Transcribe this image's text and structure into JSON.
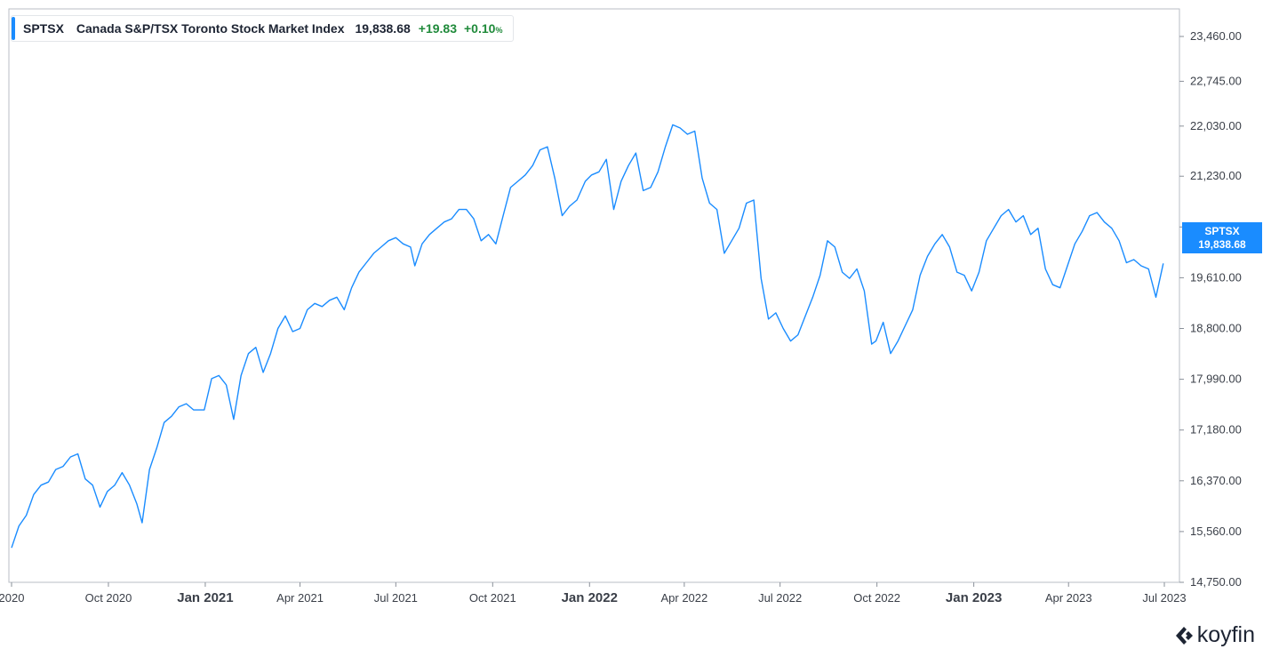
{
  "legend": {
    "symbol": "SPTSX",
    "name": "Canada S&P/TSX Toronto Stock Market Index",
    "price": "19,838.68",
    "change": "+19.83",
    "change_pct": "+0.10",
    "pct_sign": "%"
  },
  "price_tag": {
    "symbol": "SPTSX",
    "value": "19,838.68"
  },
  "brand": {
    "name": "koyfin"
  },
  "colors": {
    "line": "#1a8cff",
    "positive": "#1f8a3a",
    "tag_bg": "#1a8cff"
  },
  "chart_data": {
    "type": "line",
    "title": "Canada S&P/TSX Toronto Stock Market Index",
    "ylim": [
      14750,
      23900
    ],
    "y_ticks": [
      14750,
      15560,
      16370,
      17180,
      17990,
      18800,
      19610,
      20420,
      21230,
      22030,
      22745,
      23460
    ],
    "y_tick_labels": [
      "14,750.00",
      "15,560.00",
      "16,370.00",
      "17,180.00",
      "17,990.00",
      "18,800.00",
      "19,610.00",
      "20,420.00",
      "21,230.00",
      "22,030.00",
      "22,745.00",
      "23,460.00"
    ],
    "x_range": [
      "2020-07-01",
      "2023-07-01"
    ],
    "x_ticks": [
      {
        "date": "2020-07-01",
        "label": "2020",
        "bold": false
      },
      {
        "date": "2020-10-01",
        "label": "Oct 2020",
        "bold": false
      },
      {
        "date": "2021-01-01",
        "label": "Jan 2021",
        "bold": true
      },
      {
        "date": "2021-04-01",
        "label": "Apr 2021",
        "bold": false
      },
      {
        "date": "2021-07-01",
        "label": "Jul 2021",
        "bold": false
      },
      {
        "date": "2021-10-01",
        "label": "Oct 2021",
        "bold": false
      },
      {
        "date": "2022-01-01",
        "label": "Jan 2022",
        "bold": true
      },
      {
        "date": "2022-04-01",
        "label": "Apr 2022",
        "bold": false
      },
      {
        "date": "2022-07-01",
        "label": "Jul 2022",
        "bold": false
      },
      {
        "date": "2022-10-01",
        "label": "Oct 2022",
        "bold": false
      },
      {
        "date": "2023-01-01",
        "label": "Jan 2023",
        "bold": true
      },
      {
        "date": "2023-04-01",
        "label": "Apr 2023",
        "bold": false
      },
      {
        "date": "2023-07-01",
        "label": "Jul 2023",
        "bold": false
      }
    ],
    "series": [
      {
        "name": "SPTSX",
        "points": [
          [
            "2020-07-01",
            15300
          ],
          [
            "2020-07-08",
            15650
          ],
          [
            "2020-07-15",
            15820
          ],
          [
            "2020-07-22",
            16150
          ],
          [
            "2020-07-29",
            16300
          ],
          [
            "2020-08-05",
            16350
          ],
          [
            "2020-08-12",
            16550
          ],
          [
            "2020-08-19",
            16600
          ],
          [
            "2020-08-26",
            16750
          ],
          [
            "2020-09-02",
            16800
          ],
          [
            "2020-09-09",
            16400
          ],
          [
            "2020-09-16",
            16300
          ],
          [
            "2020-09-23",
            15950
          ],
          [
            "2020-09-30",
            16200
          ],
          [
            "2020-10-07",
            16300
          ],
          [
            "2020-10-14",
            16500
          ],
          [
            "2020-10-21",
            16300
          ],
          [
            "2020-10-28",
            16000
          ],
          [
            "2020-11-02",
            15700
          ],
          [
            "2020-11-09",
            16550
          ],
          [
            "2020-11-16",
            16900
          ],
          [
            "2020-11-23",
            17300
          ],
          [
            "2020-11-30",
            17400
          ],
          [
            "2020-12-07",
            17550
          ],
          [
            "2020-12-14",
            17600
          ],
          [
            "2020-12-21",
            17500
          ],
          [
            "2020-12-31",
            17500
          ],
          [
            "2021-01-07",
            18000
          ],
          [
            "2021-01-14",
            18050
          ],
          [
            "2021-01-21",
            17900
          ],
          [
            "2021-01-28",
            17350
          ],
          [
            "2021-02-04",
            18050
          ],
          [
            "2021-02-11",
            18400
          ],
          [
            "2021-02-18",
            18500
          ],
          [
            "2021-02-25",
            18100
          ],
          [
            "2021-03-04",
            18400
          ],
          [
            "2021-03-11",
            18800
          ],
          [
            "2021-03-18",
            19000
          ],
          [
            "2021-03-25",
            18750
          ],
          [
            "2021-04-01",
            18800
          ],
          [
            "2021-04-08",
            19100
          ],
          [
            "2021-04-15",
            19200
          ],
          [
            "2021-04-22",
            19150
          ],
          [
            "2021-04-29",
            19250
          ],
          [
            "2021-05-06",
            19300
          ],
          [
            "2021-05-13",
            19100
          ],
          [
            "2021-05-20",
            19450
          ],
          [
            "2021-05-27",
            19700
          ],
          [
            "2021-06-03",
            19850
          ],
          [
            "2021-06-10",
            20000
          ],
          [
            "2021-06-17",
            20100
          ],
          [
            "2021-06-24",
            20200
          ],
          [
            "2021-07-01",
            20250
          ],
          [
            "2021-07-08",
            20150
          ],
          [
            "2021-07-15",
            20100
          ],
          [
            "2021-07-19",
            19800
          ],
          [
            "2021-07-26",
            20150
          ],
          [
            "2021-08-02",
            20300
          ],
          [
            "2021-08-09",
            20400
          ],
          [
            "2021-08-16",
            20500
          ],
          [
            "2021-08-23",
            20550
          ],
          [
            "2021-08-30",
            20700
          ],
          [
            "2021-09-06",
            20700
          ],
          [
            "2021-09-13",
            20550
          ],
          [
            "2021-09-20",
            20200
          ],
          [
            "2021-09-27",
            20300
          ],
          [
            "2021-10-04",
            20150
          ],
          [
            "2021-10-11",
            20600
          ],
          [
            "2021-10-18",
            21050
          ],
          [
            "2021-10-25",
            21150
          ],
          [
            "2021-11-01",
            21250
          ],
          [
            "2021-11-08",
            21400
          ],
          [
            "2021-11-15",
            21650
          ],
          [
            "2021-11-22",
            21700
          ],
          [
            "2021-11-29",
            21200
          ],
          [
            "2021-12-06",
            20600
          ],
          [
            "2021-12-13",
            20750
          ],
          [
            "2021-12-20",
            20850
          ],
          [
            "2021-12-28",
            21150
          ],
          [
            "2022-01-03",
            21250
          ],
          [
            "2022-01-10",
            21300
          ],
          [
            "2022-01-17",
            21500
          ],
          [
            "2022-01-24",
            20700
          ],
          [
            "2022-01-31",
            21150
          ],
          [
            "2022-02-07",
            21400
          ],
          [
            "2022-02-14",
            21600
          ],
          [
            "2022-02-21",
            21000
          ],
          [
            "2022-02-28",
            21050
          ],
          [
            "2022-03-07",
            21300
          ],
          [
            "2022-03-14",
            21700
          ],
          [
            "2022-03-21",
            22050
          ],
          [
            "2022-03-28",
            22000
          ],
          [
            "2022-04-04",
            21900
          ],
          [
            "2022-04-11",
            21950
          ],
          [
            "2022-04-18",
            21200
          ],
          [
            "2022-04-25",
            20800
          ],
          [
            "2022-05-02",
            20700
          ],
          [
            "2022-05-09",
            20000
          ],
          [
            "2022-05-16",
            20200
          ],
          [
            "2022-05-23",
            20400
          ],
          [
            "2022-05-30",
            20800
          ],
          [
            "2022-06-06",
            20850
          ],
          [
            "2022-06-13",
            19600
          ],
          [
            "2022-06-20",
            18950
          ],
          [
            "2022-06-27",
            19050
          ],
          [
            "2022-07-04",
            18800
          ],
          [
            "2022-07-11",
            18600
          ],
          [
            "2022-07-18",
            18700
          ],
          [
            "2022-07-25",
            19000
          ],
          [
            "2022-08-01",
            19300
          ],
          [
            "2022-08-08",
            19650
          ],
          [
            "2022-08-15",
            20200
          ],
          [
            "2022-08-22",
            20100
          ],
          [
            "2022-08-29",
            19700
          ],
          [
            "2022-09-05",
            19600
          ],
          [
            "2022-09-12",
            19750
          ],
          [
            "2022-09-19",
            19400
          ],
          [
            "2022-09-26",
            18550
          ],
          [
            "2022-09-30",
            18600
          ],
          [
            "2022-10-07",
            18900
          ],
          [
            "2022-10-14",
            18400
          ],
          [
            "2022-10-21",
            18600
          ],
          [
            "2022-10-28",
            18850
          ],
          [
            "2022-11-04",
            19100
          ],
          [
            "2022-11-11",
            19650
          ],
          [
            "2022-11-18",
            19950
          ],
          [
            "2022-11-25",
            20150
          ],
          [
            "2022-12-02",
            20300
          ],
          [
            "2022-12-09",
            20100
          ],
          [
            "2022-12-16",
            19700
          ],
          [
            "2022-12-23",
            19650
          ],
          [
            "2022-12-30",
            19400
          ],
          [
            "2023-01-06",
            19700
          ],
          [
            "2023-01-13",
            20200
          ],
          [
            "2023-01-20",
            20400
          ],
          [
            "2023-01-27",
            20600
          ],
          [
            "2023-02-03",
            20700
          ],
          [
            "2023-02-10",
            20500
          ],
          [
            "2023-02-17",
            20600
          ],
          [
            "2023-02-24",
            20300
          ],
          [
            "2023-03-03",
            20400
          ],
          [
            "2023-03-10",
            19750
          ],
          [
            "2023-03-17",
            19500
          ],
          [
            "2023-03-24",
            19450
          ],
          [
            "2023-03-31",
            19800
          ],
          [
            "2023-04-07",
            20150
          ],
          [
            "2023-04-14",
            20350
          ],
          [
            "2023-04-21",
            20600
          ],
          [
            "2023-04-28",
            20650
          ],
          [
            "2023-05-05",
            20500
          ],
          [
            "2023-05-12",
            20400
          ],
          [
            "2023-05-19",
            20200
          ],
          [
            "2023-05-26",
            19850
          ],
          [
            "2023-06-02",
            19900
          ],
          [
            "2023-06-09",
            19800
          ],
          [
            "2023-06-16",
            19750
          ],
          [
            "2023-06-23",
            19300
          ],
          [
            "2023-06-30",
            19838.68
          ]
        ]
      }
    ]
  }
}
